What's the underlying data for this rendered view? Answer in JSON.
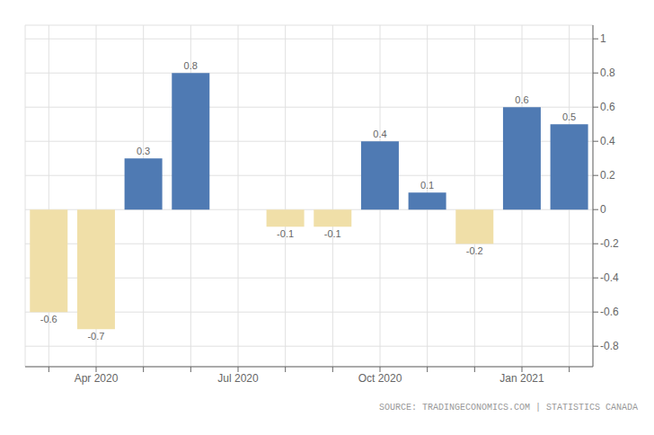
{
  "chart_data": {
    "type": "bar",
    "categories": [
      null,
      "Apr 2020",
      null,
      null,
      "Jul 2020",
      null,
      null,
      "Oct 2020",
      null,
      null,
      "Jan 2021",
      null
    ],
    "values": [
      -0.6,
      -0.7,
      0.3,
      0.8,
      0.0,
      -0.1,
      -0.1,
      0.4,
      0.1,
      -0.2,
      0.6,
      0.5
    ],
    "colors": [
      "#f0dfa8",
      "#f0dfa8",
      "#4f7ab3",
      "#4f7ab3",
      "#4f7ab3",
      "#f0dfa8",
      "#f0dfa8",
      "#4f7ab3",
      "#4f7ab3",
      "#f0dfa8",
      "#4f7ab3",
      "#4f7ab3"
    ],
    "ylim": [
      -0.92,
      1.08
    ],
    "yticks": [
      -0.8,
      -0.6,
      -0.4,
      -0.2,
      0.0,
      0.2,
      0.4,
      0.6,
      0.8,
      1.0
    ],
    "grid": true,
    "data_labels": true,
    "annotations": [
      "SOURCE: TRADINGECONOMICS.COM | STATISTICS CANADA"
    ]
  }
}
